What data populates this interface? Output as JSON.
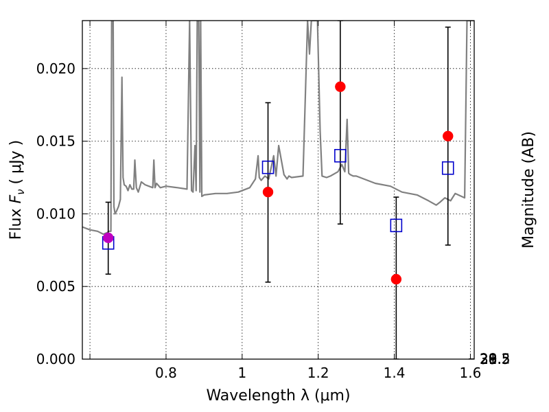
{
  "chart_data": {
    "type": "scatter",
    "xlabel": "Wavelength  λ (μm)",
    "ylabel": "Flux  F_ν  ( μJy )",
    "ylabel_parts": {
      "prefix": "Flux  ",
      "symbol": "F",
      "subscript": "ν",
      "suffix": "  ( μJy )"
    },
    "ylabel_right": "Magnitude (AB)",
    "xlim": [
      0.58,
      1.61
    ],
    "ylim": [
      0.0,
      0.0233
    ],
    "grid": true,
    "x_ticks": [
      {
        "value": 0.6,
        "label": ""
      },
      {
        "value": 0.8,
        "label": "0.8"
      },
      {
        "value": 1.0,
        "label": "1"
      },
      {
        "value": 1.2,
        "label": "1.2"
      },
      {
        "value": 1.4,
        "label": "1.4"
      },
      {
        "value": 1.6,
        "label": "1.6"
      }
    ],
    "y_ticks": [
      {
        "value": 0.0,
        "label": "0.000"
      },
      {
        "value": 0.005,
        "label": "0.005"
      },
      {
        "value": 0.01,
        "label": "0.010"
      },
      {
        "value": 0.015,
        "label": "0.015"
      },
      {
        "value": 0.02,
        "label": "0.020"
      }
    ],
    "right_ticks": [
      {
        "value": 28,
        "label": "28"
      },
      {
        "value": 28.2,
        "label": "28.2"
      },
      {
        "value": 28.5,
        "label": "28.5"
      },
      {
        "value": 29,
        "label": "29"
      },
      {
        "value": 29.5,
        "label": "29.5"
      },
      {
        "value": 30,
        "label": "30"
      },
      {
        "value": 31,
        "label": "31"
      }
    ],
    "series": [
      {
        "kind": "model-spectrum",
        "color": "#808080",
        "x": [
          0.58,
          0.6,
          0.62,
          0.635,
          0.645,
          0.65,
          0.655,
          0.657,
          0.659,
          0.661,
          0.663,
          0.666,
          0.67,
          0.675,
          0.68,
          0.684,
          0.687,
          0.69,
          0.695,
          0.7,
          0.705,
          0.71,
          0.715,
          0.718,
          0.722,
          0.727,
          0.735,
          0.745,
          0.755,
          0.765,
          0.768,
          0.771,
          0.775,
          0.785,
          0.8,
          0.83,
          0.855,
          0.862,
          0.867,
          0.871,
          0.876,
          0.879,
          0.882,
          0.886,
          0.889,
          0.891,
          0.894,
          0.9,
          0.93,
          0.96,
          0.99,
          1.02,
          1.035,
          1.042,
          1.045,
          1.05,
          1.06,
          1.07,
          1.083,
          1.089,
          1.096,
          1.11,
          1.118,
          1.123,
          1.13,
          1.16,
          1.172,
          1.177,
          1.182,
          1.187,
          1.192,
          1.198,
          1.205,
          1.21,
          1.222,
          1.232,
          1.252,
          1.262,
          1.27,
          1.276,
          1.28,
          1.284,
          1.292,
          1.3,
          1.32,
          1.35,
          1.39,
          1.42,
          1.46,
          1.49,
          1.51,
          1.52,
          1.533,
          1.548,
          1.56,
          1.585,
          1.591,
          1.593,
          1.6,
          1.61
        ],
        "y": [
          0.0091,
          0.0089,
          0.0088,
          0.0086,
          0.0087,
          0.0088,
          0.0088,
          0.0233,
          0.0233,
          0.0233,
          0.0105,
          0.01,
          0.0102,
          0.0105,
          0.011,
          0.0194,
          0.0125,
          0.012,
          0.0119,
          0.0116,
          0.012,
          0.0117,
          0.0117,
          0.0137,
          0.0118,
          0.0115,
          0.0122,
          0.012,
          0.0119,
          0.0118,
          0.0137,
          0.0118,
          0.0121,
          0.0118,
          0.0119,
          0.0118,
          0.0117,
          0.0233,
          0.0116,
          0.0115,
          0.0147,
          0.0116,
          0.0233,
          0.0233,
          0.0115,
          0.0233,
          0.0112,
          0.0113,
          0.0114,
          0.0114,
          0.0115,
          0.0118,
          0.0124,
          0.014,
          0.0125,
          0.0123,
          0.0126,
          0.0124,
          0.014,
          0.0126,
          0.0147,
          0.0127,
          0.0124,
          0.0126,
          0.0125,
          0.0126,
          0.0233,
          0.021,
          0.0233,
          0.0233,
          0.0233,
          0.0233,
          0.0157,
          0.0126,
          0.0125,
          0.0126,
          0.0129,
          0.0134,
          0.0129,
          0.0165,
          0.0128,
          0.0127,
          0.0126,
          0.0126,
          0.0124,
          0.0121,
          0.0119,
          0.0115,
          0.0113,
          0.0109,
          0.0106,
          0.0108,
          0.0111,
          0.0109,
          0.0114,
          0.0111,
          0.0233,
          0.0233,
          0.0233,
          0.0233
        ]
      },
      {
        "kind": "observed",
        "marker": "circle",
        "color": "#ff0000",
        "points": [
          {
            "x": 1.068,
            "y": 0.0115,
            "lo": 0.0053,
            "hi": 0.01765
          },
          {
            "x": 1.258,
            "y": 0.01875,
            "lo": 0.0093,
            "hi": 0.0233
          },
          {
            "x": 1.405,
            "y": 0.0055,
            "lo": 0.0,
            "hi": 0.01115
          },
          {
            "x": 1.541,
            "y": 0.01535,
            "lo": 0.00785,
            "hi": 0.02285
          }
        ]
      },
      {
        "kind": "observed",
        "marker": "circle",
        "color": "#bf00bf",
        "points": [
          {
            "x": 0.648,
            "y": 0.00835,
            "lo": 0.00585,
            "hi": 0.0108
          }
        ]
      },
      {
        "kind": "model-photometry",
        "marker": "square",
        "color": "#0000cc",
        "points": [
          {
            "x": 0.648,
            "y": 0.008
          },
          {
            "x": 1.068,
            "y": 0.0132
          },
          {
            "x": 1.258,
            "y": 0.014
          },
          {
            "x": 1.405,
            "y": 0.0092
          },
          {
            "x": 1.541,
            "y": 0.01315
          }
        ]
      }
    ]
  }
}
